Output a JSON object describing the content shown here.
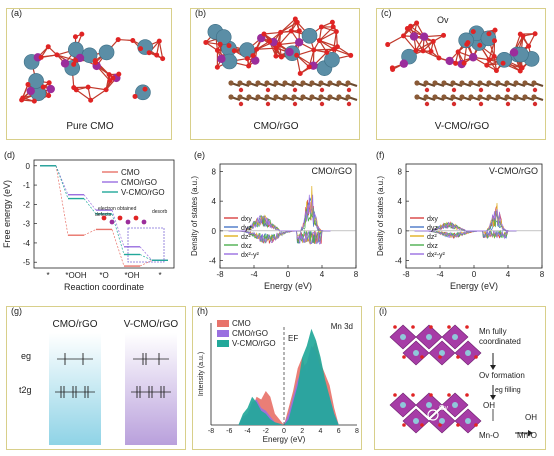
{
  "panels": {
    "a": {
      "label": "(a)",
      "caption": "Pure CMO"
    },
    "b": {
      "label": "(b)",
      "caption": "CMO/rGO"
    },
    "c": {
      "label": "(c)",
      "caption": "V-CMO/rGO",
      "annotation": "Ov"
    },
    "d": {
      "label": "(d)"
    },
    "e": {
      "label": "(e)"
    },
    "f": {
      "label": "(f)"
    },
    "g": {
      "label": "(g)",
      "title_left": "CMO/rGO",
      "title_right": "V-CMO/rGO",
      "eg": "eg",
      "t2g": "t2g"
    },
    "h": {
      "label": "(h)"
    },
    "i": {
      "label": "(i)",
      "text1": "Mn fully coordinated",
      "text2": "Ov formation",
      "text3": "eg filling",
      "oh1": "OH",
      "mno1": "Mn-O",
      "oh2": "OH",
      "mno2": "Mn-O",
      "ov": "Ov"
    }
  },
  "colors": {
    "cmo": "#e8736a",
    "cmo_rgo": "#9a6fe0",
    "vcmo_rgo": "#22a89a",
    "frame": "#d8cf8a"
  },
  "chart_data": [
    {
      "id": "d",
      "type": "line",
      "xlabel": "Reaction coordinate",
      "ylabel": "Free energy (eV)",
      "categories": [
        "*",
        "*OOH",
        "*O",
        "*OH",
        "*"
      ],
      "yticks": [
        0,
        -1,
        -2,
        -3,
        -4,
        -5
      ],
      "ylim": [
        -5.3,
        0.3
      ],
      "legend": [
        "CMO",
        "CMO/rGO",
        "V-CMO/rGO"
      ],
      "series": [
        {
          "name": "CMO",
          "color": "#e8736a",
          "values": [
            0,
            -3.6,
            -3.3,
            -5.2,
            -4.9
          ]
        },
        {
          "name": "CMO/rGO",
          "color": "#9a6fe0",
          "values": [
            0,
            -1.5,
            -2.3,
            -4.2,
            -4.9
          ]
        },
        {
          "name": "V-CMO/rGO",
          "color": "#22a89a",
          "values": [
            0,
            -1.7,
            -2.5,
            -4.6,
            -4.9
          ]
        }
      ],
      "inset_labels": [
        "electron obtained",
        "defects",
        "desorb"
      ]
    },
    {
      "id": "e",
      "type": "line",
      "title": "CMO/rGO",
      "xlabel": "Energy (eV)",
      "ylabel": "Density of states (a.u.)",
      "xticks": [
        -8,
        -4,
        0,
        4,
        8
      ],
      "yticks": [
        -4,
        0,
        4,
        8
      ],
      "xlim": [
        -8,
        8
      ],
      "ylim": [
        -5,
        9
      ],
      "legend": [
        "dxy",
        "dyz",
        "dz²",
        "dxz",
        "dx²-y²"
      ],
      "legend_colors": [
        "#d94040",
        "#4a78c8",
        "#e0b020",
        "#4caf50",
        "#9a6fe0"
      ]
    },
    {
      "id": "f",
      "type": "line",
      "title": "V-CMO/rGO",
      "xlabel": "Energy (eV)",
      "ylabel": "Density of states (a.u.)",
      "xticks": [
        -8,
        -4,
        0,
        4,
        8
      ],
      "yticks": [
        -4,
        0,
        4,
        8
      ],
      "xlim": [
        -8,
        8
      ],
      "ylim": [
        -5,
        9
      ],
      "legend": [
        "dxy",
        "dyz",
        "dz²",
        "dxz",
        "dx²-y²"
      ],
      "legend_colors": [
        "#d94040",
        "#4a78c8",
        "#e0b020",
        "#4caf50",
        "#9a6fe0"
      ]
    },
    {
      "id": "h",
      "type": "area",
      "title": "Mn 3d",
      "xlabel": "Energy (eV)",
      "ylabel": "Intensity (a.u.)",
      "xticks": [
        -8,
        -6,
        -4,
        -2,
        0,
        2,
        4,
        6,
        8
      ],
      "xlim": [
        -8,
        8
      ],
      "fermi_label": "EF",
      "legend": [
        "CMO",
        "CMO/rGO",
        "V-CMO/rGO"
      ],
      "series": [
        {
          "name": "CMO",
          "color": "#e8736a",
          "x": [
            -5,
            -4.5,
            -4,
            -3.5,
            -3,
            -2.5,
            -2,
            -1.5,
            -1,
            0,
            0.5,
            1,
            1.5,
            2,
            2.5,
            3,
            3.5,
            4,
            4.5,
            5,
            5.5,
            6
          ],
          "values": [
            0,
            2,
            3,
            6,
            10,
            9,
            12,
            10,
            4,
            0,
            6,
            12,
            20,
            24,
            18,
            26,
            30,
            22,
            18,
            14,
            6,
            0
          ]
        },
        {
          "name": "CMO/rGO",
          "color": "#9a6fe0",
          "x": [
            -5,
            -4.5,
            -4,
            -3.5,
            -3,
            -2.5,
            -2,
            -1.5,
            -1,
            0,
            0.5,
            1,
            1.5,
            2,
            2.5,
            3,
            3.5,
            4,
            4.5,
            5,
            5.5,
            6
          ],
          "values": [
            0,
            3,
            4,
            8,
            9,
            6,
            5,
            3,
            1,
            0,
            4,
            10,
            16,
            20,
            22,
            28,
            26,
            20,
            14,
            10,
            4,
            0
          ]
        },
        {
          "name": "V-CMO/rGO",
          "color": "#22a89a",
          "x": [
            -5,
            -4.5,
            -4,
            -3.5,
            -3,
            -2.5,
            -2,
            -1.5,
            -1,
            0,
            0.5,
            1,
            1.5,
            2,
            2.5,
            3,
            3.5,
            4,
            4.5,
            5,
            5.5,
            6
          ],
          "values": [
            0,
            4,
            6,
            10,
            8,
            5,
            4,
            2,
            1,
            0,
            2,
            8,
            14,
            24,
            28,
            34,
            30,
            24,
            16,
            10,
            4,
            0
          ]
        }
      ]
    }
  ]
}
